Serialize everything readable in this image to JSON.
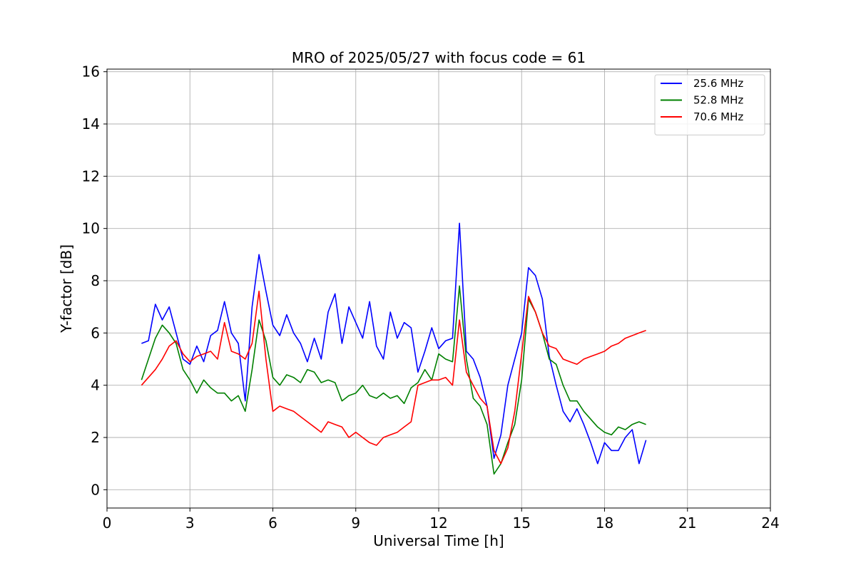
{
  "chart_data": {
    "type": "line",
    "title": "MRO of 2025/05/27 with focus code = 61",
    "xlabel": "Universal Time [h]",
    "ylabel": "Y-factor [dB]",
    "xlim": [
      0,
      24
    ],
    "ylim": [
      -0.7,
      16.1
    ],
    "xticks": [
      0,
      3,
      6,
      9,
      12,
      15,
      18,
      21,
      24
    ],
    "yticks": [
      0,
      2,
      4,
      6,
      8,
      10,
      12,
      14,
      16
    ],
    "grid": true,
    "legend_position": "top-right",
    "series": [
      {
        "name": "25.6 MHz",
        "color": "#0000ff",
        "x": [
          1.25,
          1.5,
          1.75,
          2.0,
          2.25,
          2.5,
          2.75,
          3.0,
          3.25,
          3.5,
          3.75,
          4.0,
          4.25,
          4.5,
          4.75,
          5.0,
          5.25,
          5.5,
          5.75,
          6.0,
          6.25,
          6.5,
          6.75,
          7.0,
          7.25,
          7.5,
          7.75,
          8.0,
          8.25,
          8.5,
          8.75,
          9.0,
          9.25,
          9.5,
          9.75,
          10.0,
          10.25,
          10.5,
          10.75,
          11.0,
          11.25,
          11.5,
          11.75,
          12.0,
          12.25,
          12.5,
          12.75,
          13.0,
          13.25,
          13.5,
          13.75,
          14.0,
          14.25,
          14.5,
          14.75,
          15.0,
          15.25,
          15.5,
          15.75,
          16.0,
          16.25,
          16.5,
          16.75,
          17.0,
          17.25,
          17.5,
          17.75,
          18.0,
          18.25,
          18.5,
          18.75,
          19.0,
          19.25,
          19.5
        ],
        "y": [
          5.6,
          5.7,
          7.1,
          6.5,
          7.0,
          6.0,
          5.0,
          4.8,
          5.5,
          4.9,
          5.9,
          6.1,
          7.2,
          6.0,
          5.6,
          3.4,
          7.0,
          9.0,
          7.6,
          6.3,
          5.9,
          6.7,
          6.0,
          5.6,
          4.9,
          5.8,
          5.0,
          6.8,
          7.5,
          5.6,
          7.0,
          6.4,
          5.8,
          7.2,
          5.5,
          5.0,
          6.8,
          5.8,
          6.4,
          6.2,
          4.5,
          5.3,
          6.2,
          5.4,
          5.7,
          5.8,
          10.2,
          5.3,
          5.0,
          4.3,
          3.2,
          1.2,
          2.1,
          4.0,
          5.0,
          6.0,
          8.5,
          8.2,
          7.3,
          5.1,
          4.0,
          3.0,
          2.6,
          3.1,
          2.5,
          1.8,
          1.0,
          1.8,
          1.5,
          1.5,
          2.0,
          2.3,
          1.0,
          1.9
        ]
      },
      {
        "name": "52.8 MHz",
        "color": "#008000",
        "x": [
          1.25,
          1.5,
          1.75,
          2.0,
          2.25,
          2.5,
          2.75,
          3.0,
          3.25,
          3.5,
          3.75,
          4.0,
          4.25,
          4.5,
          4.75,
          5.0,
          5.25,
          5.5,
          5.75,
          6.0,
          6.25,
          6.5,
          6.75,
          7.0,
          7.25,
          7.5,
          7.75,
          8.0,
          8.25,
          8.5,
          8.75,
          9.0,
          9.25,
          9.5,
          9.75,
          10.0,
          10.25,
          10.5,
          10.75,
          11.0,
          11.25,
          11.5,
          11.75,
          12.0,
          12.25,
          12.5,
          12.75,
          13.0,
          13.25,
          13.5,
          13.75,
          14.0,
          14.25,
          14.5,
          14.75,
          15.0,
          15.25,
          15.5,
          15.75,
          16.0,
          16.25,
          16.5,
          16.75,
          17.0,
          17.25,
          17.5,
          17.75,
          18.0,
          18.25,
          18.5,
          18.75,
          19.0,
          19.25,
          19.5
        ],
        "y": [
          4.2,
          5.0,
          5.8,
          6.3,
          6.0,
          5.6,
          4.6,
          4.2,
          3.7,
          4.2,
          3.9,
          3.7,
          3.7,
          3.4,
          3.6,
          3.0,
          4.6,
          6.5,
          5.7,
          4.3,
          4.0,
          4.4,
          4.3,
          4.1,
          4.6,
          4.5,
          4.1,
          4.2,
          4.1,
          3.4,
          3.6,
          3.7,
          4.0,
          3.6,
          3.5,
          3.7,
          3.5,
          3.6,
          3.3,
          3.9,
          4.1,
          4.6,
          4.2,
          5.2,
          5.0,
          4.9,
          7.8,
          5.0,
          3.5,
          3.2,
          2.5,
          0.6,
          1.0,
          1.8,
          2.5,
          4.2,
          7.3,
          6.8,
          6.0,
          5.0,
          4.8,
          4.0,
          3.4,
          3.4,
          3.0,
          2.7,
          2.4,
          2.2,
          2.1,
          2.4,
          2.3,
          2.5,
          2.6,
          2.5
        ]
      },
      {
        "name": "70.6 MHz",
        "color": "#ff0000",
        "x": [
          1.25,
          1.5,
          1.75,
          2.0,
          2.25,
          2.5,
          2.75,
          3.0,
          3.25,
          3.5,
          3.75,
          4.0,
          4.25,
          4.5,
          4.75,
          5.0,
          5.25,
          5.5,
          5.75,
          6.0,
          6.25,
          6.5,
          6.75,
          7.0,
          7.25,
          7.5,
          7.75,
          8.0,
          8.25,
          8.5,
          8.75,
          9.0,
          9.25,
          9.5,
          9.75,
          10.0,
          10.25,
          10.5,
          10.75,
          11.0,
          11.25,
          11.5,
          11.75,
          12.0,
          12.25,
          12.5,
          12.75,
          13.0,
          13.25,
          13.5,
          13.75,
          14.0,
          14.25,
          14.5,
          14.75,
          15.0,
          15.25,
          15.5,
          15.75,
          16.0,
          16.25,
          16.5,
          16.75,
          17.0,
          17.25,
          17.5,
          17.75,
          18.0,
          18.25,
          18.5,
          18.75,
          19.0,
          19.25,
          19.5
        ],
        "y": [
          4.0,
          4.3,
          4.6,
          5.0,
          5.5,
          5.7,
          5.2,
          4.9,
          5.1,
          5.2,
          5.3,
          5.0,
          6.4,
          5.3,
          5.2,
          5.0,
          5.6,
          7.6,
          5.0,
          3.0,
          3.2,
          3.1,
          3.0,
          2.8,
          2.6,
          2.4,
          2.2,
          2.6,
          2.5,
          2.4,
          2.0,
          2.2,
          2.0,
          1.8,
          1.7,
          2.0,
          2.1,
          2.2,
          2.4,
          2.6,
          4.0,
          4.1,
          4.2,
          4.2,
          4.3,
          4.0,
          6.5,
          4.5,
          4.0,
          3.5,
          3.2,
          1.5,
          1.0,
          1.6,
          3.0,
          5.2,
          7.4,
          6.8,
          6.0,
          5.5,
          5.4,
          5.0,
          4.9,
          4.8,
          5.0,
          5.1,
          5.2,
          5.3,
          5.5,
          5.6,
          5.8,
          5.9,
          6.0,
          6.1
        ]
      }
    ]
  }
}
